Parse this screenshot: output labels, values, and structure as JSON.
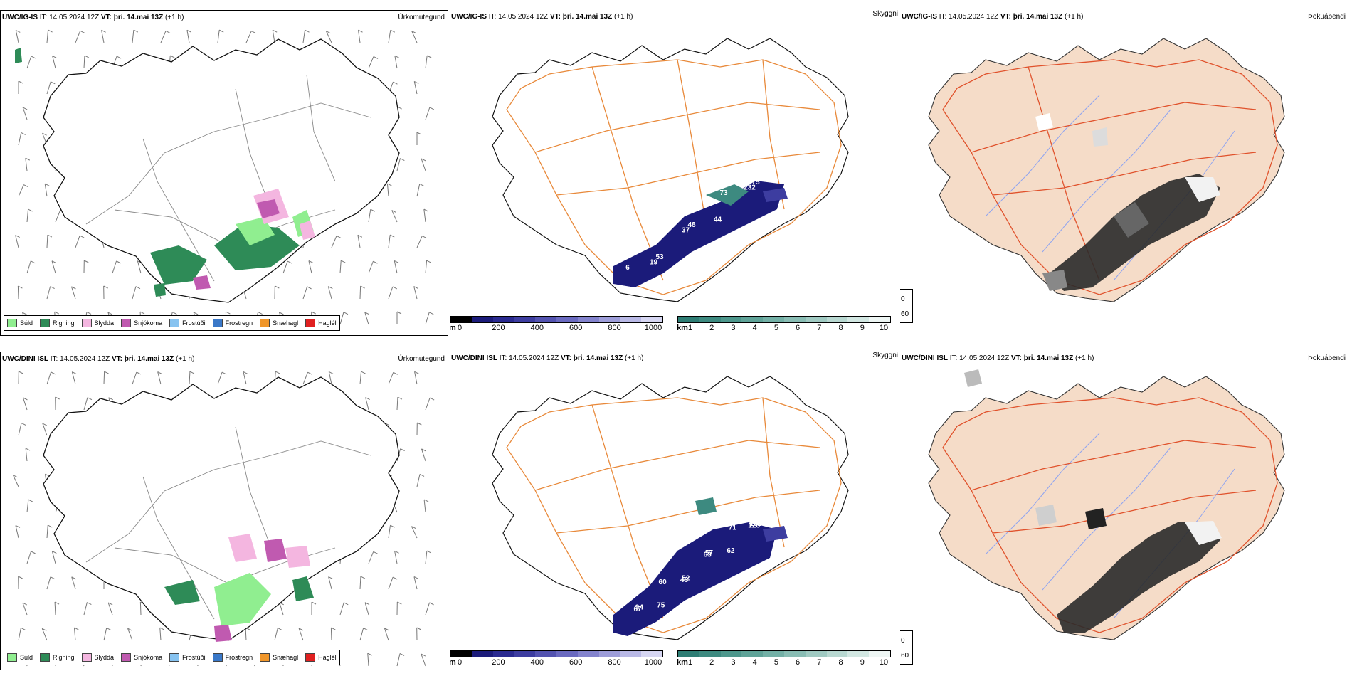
{
  "rows": [
    {
      "model": "UWC/IG-IS",
      "it_label": "IT:",
      "it_value": "14.05.2024 12Z",
      "vt_label": "VT:",
      "vt_value": "þri. 14.mai 13Z",
      "lead": "(+1 h)",
      "visibility_labels": [
        "75",
        "232",
        "73",
        "44",
        "48",
        "37",
        "53",
        "19",
        "6"
      ]
    },
    {
      "model": "UWC/DINI ISL",
      "it_label": "IT:",
      "it_value": "14.05.2024 12Z",
      "vt_label": "VT:",
      "vt_value": "þri. 14.mai 13Z",
      "lead": "(+1 h)",
      "visibility_labels": [
        "102",
        "128",
        "71",
        "62",
        "57",
        "63",
        "52",
        "48",
        "60",
        "75",
        "34",
        "67"
      ]
    }
  ],
  "panel_titles": {
    "precip": "Úrkomutegund",
    "vis": "Skyggni",
    "fog": "Þokuábendi"
  },
  "precip_legend": [
    {
      "label": "Súld",
      "color": "#90ee90"
    },
    {
      "label": "Rigning",
      "color": "#2e8b57"
    },
    {
      "label": "Slydda",
      "color": "#f4b6e0"
    },
    {
      "label": "Snjókoma",
      "color": "#c05ab0"
    },
    {
      "label": "Frostúði",
      "color": "#87c3f0"
    },
    {
      "label": "Frostregn",
      "color": "#3a78c8"
    },
    {
      "label": "Snæhagl",
      "color": "#f0962a"
    },
    {
      "label": "Haglél",
      "color": "#e02020"
    }
  ],
  "colorbar_m": {
    "unit": "m",
    "ticks": [
      "0",
      "200",
      "400",
      "600",
      "800",
      "1000"
    ],
    "colors": [
      "#000000",
      "#1b1b7a",
      "#2a2a90",
      "#3d3da0",
      "#5353b0",
      "#6a6ac0",
      "#8383cd",
      "#9d9dd9",
      "#b9b9e6",
      "#d6d6f2"
    ]
  },
  "colorbar_km": {
    "unit": "km",
    "ticks": [
      "1",
      "2",
      "3",
      "4",
      "5",
      "6",
      "7",
      "8",
      "9",
      "10"
    ],
    "colors": [
      "#2e7d74",
      "#3d8a80",
      "#4d978c",
      "#5fa398",
      "#73b0a6",
      "#89bdb4",
      "#a0cac2",
      "#b8d8d1",
      "#d2e7e2",
      "#eef6f4"
    ]
  },
  "fog_legend": [
    {
      "label": "0",
      "color": "#000000"
    },
    {
      "label": "60",
      "color": "#ffffff"
    }
  ]
}
